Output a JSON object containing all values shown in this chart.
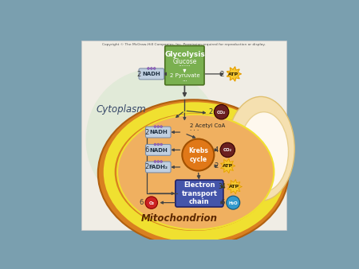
{
  "bg_outer": "#7a9faf",
  "bg_paper": "#f0ede5",
  "copyright_text": "Copyright © The McGraw-Hill Companies, Inc. Permission required for reproduction or display.",
  "mitochondrion_label": "Mitochondrion",
  "cytoplasm_label": "Cytoplasm",
  "glycolysis_label": "Glycolysis",
  "glucose_label": "Glucose",
  "pyruvate_label": "2 Pyruvate",
  "acetyl_label": "2 Acetyl CoA",
  "krebs_label": "Krebs\ncycle",
  "etc_label": "Electron\ntransport\nchain",
  "nadh_color": "#c0cfe0",
  "nadh_border": "#8090a8",
  "atp_color": "#f5c830",
  "atp_star_color": "#e09000",
  "co2_color": "#6b2020",
  "o2_color": "#cc2222",
  "h2o_color": "#3399cc",
  "krebs_color": "#e07818",
  "etc_color": "#4455aa",
  "glycolysis_box_color": "#7ab050",
  "mito_outer_color": "#d98020",
  "mito_inner_color": "#c87010",
  "mito_matrix_color": "#f0b060",
  "mito_yellow_color": "#f0e030",
  "cristae_color": "#f8e8c8",
  "cyto_color": "#d8e8d0"
}
